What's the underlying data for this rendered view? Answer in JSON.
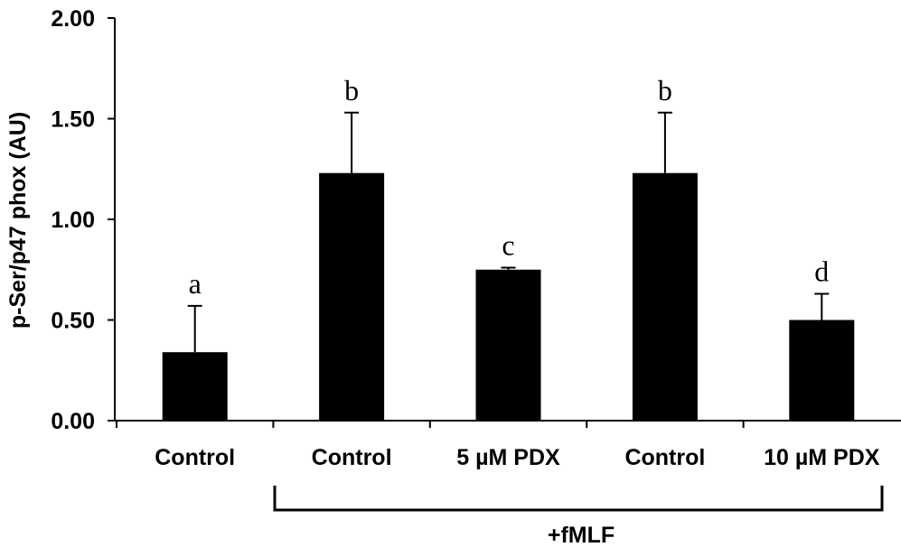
{
  "chart_data": {
    "type": "bar",
    "categories": [
      "Control",
      "Control",
      "5 µM PDX",
      "Control",
      "10 µM PDX"
    ],
    "values": [
      0.34,
      1.23,
      0.75,
      1.23,
      0.5
    ],
    "error_bars": [
      0.23,
      0.3,
      0.01,
      0.3,
      0.13
    ],
    "significance_labels": [
      "a",
      "b",
      "c",
      "b",
      "d"
    ],
    "ylabel": "p-Ser/p47 phox (AU)",
    "xlabel": "",
    "ylim": [
      0,
      2.0
    ],
    "yticks": [
      0.0,
      0.5,
      1.0,
      1.5,
      2.0
    ],
    "ytick_labels": [
      "0.00",
      "0.50",
      "1.00",
      "1.50",
      "2.00"
    ],
    "group_bracket": {
      "label": "+fMLF",
      "from_index": 1,
      "to_index": 4
    },
    "bar_color": "#000000",
    "grid": false,
    "legend": "none"
  }
}
